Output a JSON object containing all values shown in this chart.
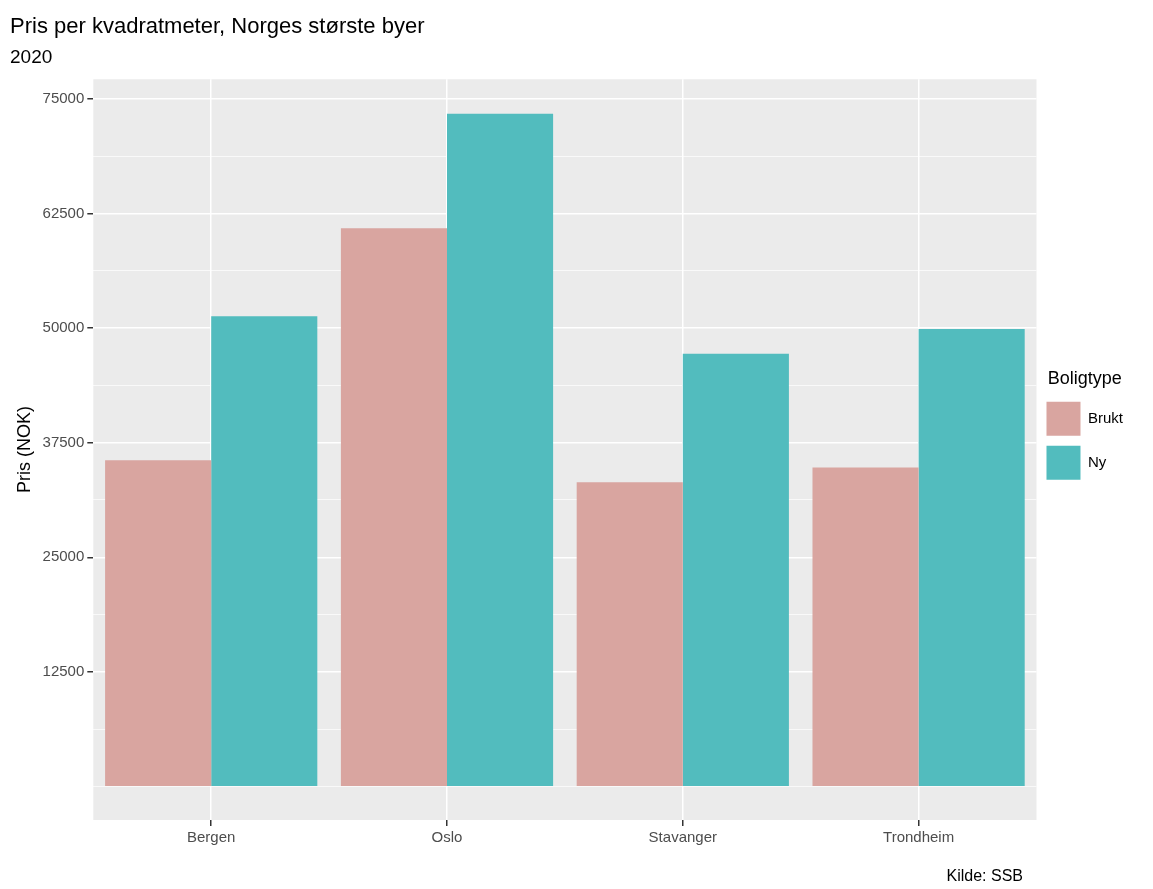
{
  "chart_data": {
    "type": "bar",
    "title": "Pris per kvadratmeter, Norges største byer",
    "subtitle": "2020",
    "ylabel": "Pris (NOK)",
    "legend_title": "Boligtype",
    "annotations": [
      "Kilde: SSB"
    ],
    "categories": [
      "Bergen",
      "Oslo",
      "Stavanger",
      "Trondheim"
    ],
    "series": [
      {
        "name": "Brukt",
        "color": "#d9a5a0",
        "values": [
          35600,
          60900,
          33200,
          34800
        ]
      },
      {
        "name": "Ny",
        "color": "#52bcbe",
        "values": [
          51300,
          73400,
          47200,
          49900
        ]
      }
    ],
    "ylim": [
      -3675,
      77175
    ],
    "yticks": [
      {
        "value": 0,
        "label": null
      },
      {
        "value": 6250,
        "label": null
      },
      12500,
      {
        "value": 18750,
        "label": null
      },
      25000,
      {
        "value": 31250,
        "label": null
      },
      37500,
      {
        "value": 43750,
        "label": null
      },
      50000,
      {
        "value": 56250,
        "label": null
      },
      62500,
      {
        "value": 68750,
        "label": null
      },
      75000
    ],
    "grid": true,
    "legend": "right"
  }
}
